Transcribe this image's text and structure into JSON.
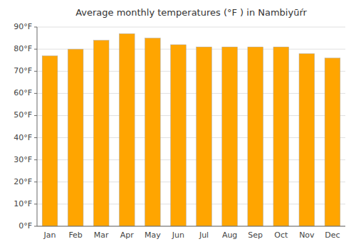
{
  "chart_data": {
    "type": "bar",
    "title": "Average monthly temperatures (°F ) in Nambiyūŕr",
    "categories": [
      "Jan",
      "Feb",
      "Mar",
      "Apr",
      "May",
      "Jun",
      "Jul",
      "Aug",
      "Sep",
      "Oct",
      "Nov",
      "Dec"
    ],
    "values": [
      77,
      80,
      84,
      87,
      85,
      82,
      81,
      81,
      81,
      81,
      78,
      76
    ],
    "color": "#FFA500",
    "ylim": [
      0,
      90
    ],
    "yticks": [
      {
        "value": 0,
        "label": "0°F"
      },
      {
        "value": 10,
        "label": "10°F"
      },
      {
        "value": 20,
        "label": "20°F"
      },
      {
        "value": 30,
        "label": "30°F"
      },
      {
        "value": 40,
        "label": "40°F"
      },
      {
        "value": 50,
        "label": "50°F"
      },
      {
        "value": 60,
        "label": "60°F"
      },
      {
        "value": 70,
        "label": "70°F"
      },
      {
        "value": 80,
        "label": "80°F"
      },
      {
        "value": 90,
        "label": "90°F"
      }
    ],
    "grid": true
  }
}
